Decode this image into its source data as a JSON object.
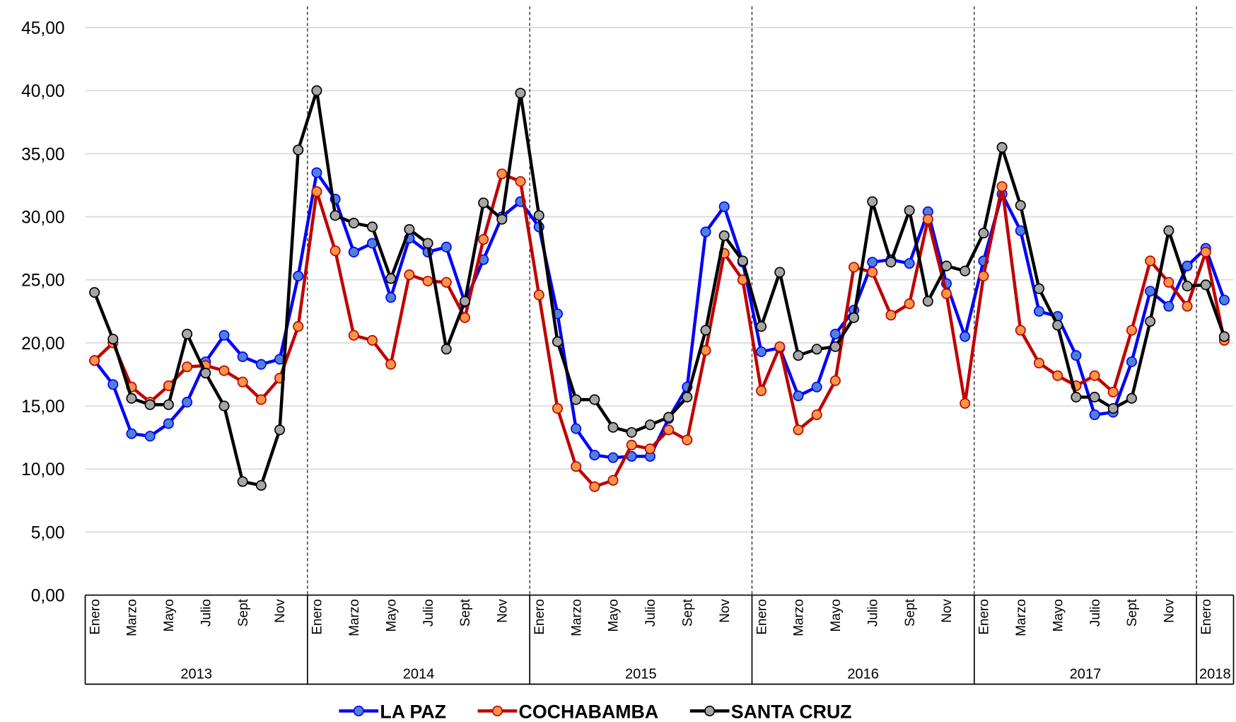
{
  "chart_data": {
    "type": "line",
    "groups": [
      {
        "label": "2013",
        "categories": [
          "Enero",
          null,
          "Marzo",
          null,
          "Mayo",
          null,
          "Julio",
          null,
          "Sept",
          null,
          "Nov",
          null
        ]
      },
      {
        "label": "2014",
        "categories": [
          "Enero",
          null,
          "Marzo",
          null,
          "Mayo",
          null,
          "Julio",
          null,
          "Sept",
          null,
          "Nov",
          null
        ]
      },
      {
        "label": "2015",
        "categories": [
          "Enero",
          null,
          "Marzo",
          null,
          "Mayo",
          null,
          "Julio",
          null,
          "Sept",
          null,
          "Nov",
          null
        ]
      },
      {
        "label": "2016",
        "categories": [
          "Enero",
          null,
          "Marzo",
          null,
          "Mayo",
          null,
          "Julio",
          null,
          "Sept",
          null,
          "Nov",
          null
        ]
      },
      {
        "label": "2017",
        "categories": [
          "Enero",
          null,
          "Marzo",
          null,
          "Mayo",
          null,
          "Julio",
          null,
          "Sept",
          null,
          "Nov",
          null
        ]
      },
      {
        "label": "2018",
        "categories": [
          "Enero",
          null
        ]
      }
    ],
    "series": [
      {
        "name": "LA PAZ",
        "color": "#0000ff",
        "marker_color": "#4f81d9",
        "values": [
          18.6,
          16.7,
          12.8,
          12.6,
          13.6,
          15.3,
          18.5,
          20.6,
          18.9,
          18.3,
          18.7,
          25.3,
          33.5,
          31.4,
          27.2,
          27.9,
          23.6,
          28.3,
          27.2,
          27.6,
          23.2,
          26.6,
          30.0,
          31.2,
          29.2,
          22.3,
          13.2,
          11.1,
          10.9,
          11.0,
          11.0,
          14.0,
          16.5,
          28.8,
          30.8,
          26.4,
          19.3,
          19.6,
          15.8,
          16.5,
          20.7,
          22.6,
          26.4,
          26.6,
          26.3,
          30.4,
          24.7,
          20.5,
          26.5,
          31.8,
          28.9,
          22.5,
          22.1,
          19.0,
          14.3,
          14.5,
          18.5,
          24.1,
          22.9,
          26.1,
          27.5,
          23.4
        ]
      },
      {
        "name": "COCHABAMBA",
        "color": "#c00000",
        "marker_color": "#f79646",
        "values": [
          18.6,
          20.0,
          16.5,
          15.3,
          16.6,
          18.1,
          18.2,
          17.8,
          16.9,
          15.5,
          17.2,
          21.3,
          32.0,
          27.3,
          20.6,
          20.2,
          18.3,
          25.4,
          24.9,
          24.8,
          22.0,
          28.2,
          33.4,
          32.8,
          23.8,
          14.8,
          10.2,
          8.6,
          9.1,
          11.9,
          11.6,
          13.1,
          12.3,
          19.4,
          27.1,
          25.0,
          16.2,
          19.7,
          13.1,
          14.3,
          17.0,
          26.0,
          25.6,
          22.2,
          23.1,
          29.8,
          23.9,
          15.2,
          25.3,
          32.4,
          21.0,
          18.4,
          17.4,
          16.6,
          17.4,
          16.1,
          21.0,
          26.5,
          24.8,
          22.9,
          27.2,
          20.2
        ]
      },
      {
        "name": "SANTA CRUZ",
        "color": "#000000",
        "marker_color": "#a6a6a6",
        "values": [
          24.0,
          20.3,
          15.6,
          15.1,
          15.1,
          20.7,
          17.6,
          15.0,
          9.0,
          8.7,
          13.1,
          35.3,
          40.0,
          30.1,
          29.5,
          29.2,
          25.1,
          29.0,
          27.9,
          19.5,
          23.3,
          31.1,
          29.8,
          39.8,
          30.1,
          20.1,
          15.5,
          15.5,
          13.3,
          12.9,
          13.5,
          14.1,
          15.7,
          21.0,
          28.5,
          26.5,
          21.3,
          25.6,
          19.0,
          19.5,
          19.7,
          22.0,
          31.2,
          26.4,
          30.5,
          23.3,
          26.1,
          25.7,
          28.7,
          35.5,
          30.9,
          24.3,
          21.4,
          15.7,
          15.7,
          14.8,
          15.6,
          21.7,
          28.9,
          24.5,
          24.6,
          20.5
        ]
      }
    ],
    "ylim": [
      0,
      45
    ],
    "yticks": [
      {
        "value": 0,
        "label": "0,00"
      },
      {
        "value": 5,
        "label": "5,00"
      },
      {
        "value": 10,
        "label": "10,00"
      },
      {
        "value": 15,
        "label": "15,00"
      },
      {
        "value": 20,
        "label": "20,00"
      },
      {
        "value": 25,
        "label": "25,00"
      },
      {
        "value": 30,
        "label": "30,00"
      },
      {
        "value": 35,
        "label": "35,00"
      },
      {
        "value": 40,
        "label": "40,00"
      },
      {
        "value": 45,
        "label": "45,00"
      }
    ],
    "grid": true,
    "legend": "bottom"
  }
}
